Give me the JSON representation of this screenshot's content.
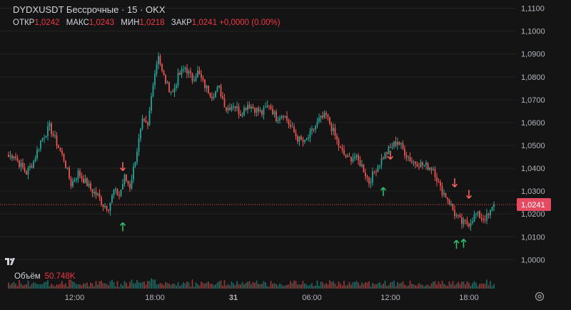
{
  "header": {
    "symbol": "DYDXUSDT",
    "contract": "Бессрочные",
    "interval": "15",
    "exchange": "OKX",
    "title_sep": "·",
    "open_label": "ОТКР",
    "open_value": "1,0242",
    "high_label": "МАКС",
    "high_value": "1,0243",
    "low_label": "МИН",
    "low_value": "1,0218",
    "close_label": "ЗАКР",
    "close_value": "1,0241",
    "change": "+0,0000 (0.00%)"
  },
  "volume": {
    "label": "Объём",
    "value": "50.748K"
  },
  "colors": {
    "up": "#26a69a",
    "down": "#ef5350",
    "background": "#141414",
    "grid": "#222222",
    "price_line": "#ef5350",
    "price_badge": "#e44b61",
    "buy_arrow": "#2ebd6b",
    "sell_arrow": "#f0645c"
  },
  "chart_data": {
    "type": "candlestick",
    "y_axis": {
      "ticks": [
        "1,1100",
        "1,1000",
        "1,0900",
        "1,0800",
        "1,0700",
        "1,0600",
        "1,0500",
        "1,0400",
        "1,0300",
        "1,0200",
        "1,0100",
        "1,0000"
      ],
      "ylim": [
        0.9998,
        1.1111
      ]
    },
    "x_axis": {
      "ticks": [
        "12:00",
        "18:00",
        "31",
        "06:00",
        "12:00",
        "18:00"
      ],
      "bold_tick": "31"
    },
    "current_price": {
      "value": 1.0241,
      "label": "1,0241"
    },
    "anchor_points": [
      [
        0,
        1.045
      ],
      [
        3,
        1.046
      ],
      [
        6,
        1.042
      ],
      [
        10,
        1.038
      ],
      [
        14,
        1.043
      ],
      [
        18,
        1.052
      ],
      [
        23,
        1.058
      ],
      [
        27,
        1.051
      ],
      [
        31,
        1.044
      ],
      [
        35,
        1.033
      ],
      [
        39,
        1.038
      ],
      [
        43,
        1.034
      ],
      [
        47,
        1.03
      ],
      [
        50,
        1.028
      ],
      [
        53,
        1.024
      ],
      [
        56,
        1.023
      ],
      [
        59,
        1.03
      ],
      [
        62,
        1.028
      ],
      [
        65,
        1.036
      ],
      [
        68,
        1.032
      ],
      [
        72,
        1.048
      ],
      [
        75,
        1.06
      ],
      [
        78,
        1.058
      ],
      [
        81,
        1.078
      ],
      [
        84,
        1.09
      ],
      [
        86,
        1.082
      ],
      [
        89,
        1.076
      ],
      [
        92,
        1.073
      ],
      [
        95,
        1.08
      ],
      [
        99,
        1.084
      ],
      [
        103,
        1.079
      ],
      [
        106,
        1.082
      ],
      [
        110,
        1.076
      ],
      [
        114,
        1.072
      ],
      [
        118,
        1.075
      ],
      [
        122,
        1.066
      ],
      [
        126,
        1.068
      ],
      [
        130,
        1.064
      ],
      [
        134,
        1.068
      ],
      [
        138,
        1.066
      ],
      [
        142,
        1.064
      ],
      [
        146,
        1.068
      ],
      [
        150,
        1.062
      ],
      [
        154,
        1.064
      ],
      [
        158,
        1.058
      ],
      [
        162,
        1.053
      ],
      [
        166,
        1.051
      ],
      [
        170,
        1.056
      ],
      [
        174,
        1.061
      ],
      [
        178,
        1.063
      ],
      [
        182,
        1.056
      ],
      [
        186,
        1.048
      ],
      [
        190,
        1.044
      ],
      [
        194,
        1.045
      ],
      [
        198,
        1.041
      ],
      [
        202,
        1.034
      ],
      [
        206,
        1.04
      ],
      [
        210,
        1.045
      ],
      [
        214,
        1.049
      ],
      [
        218,
        1.052
      ],
      [
        222,
        1.047
      ],
      [
        226,
        1.043
      ],
      [
        230,
        1.042
      ],
      [
        234,
        1.041
      ],
      [
        238,
        1.04
      ],
      [
        242,
        1.031
      ],
      [
        246,
        1.027
      ],
      [
        250,
        1.02
      ],
      [
        254,
        1.016
      ],
      [
        258,
        1.016
      ],
      [
        262,
        1.02
      ],
      [
        266,
        1.018
      ],
      [
        269,
        1.019
      ],
      [
        272,
        1.024
      ]
    ],
    "candle_count": 273,
    "time_ticks_index": [
      37,
      82,
      126,
      170,
      214,
      258
    ],
    "signals": [
      {
        "type": "sell",
        "index": 64,
        "price": 1.0411
      },
      {
        "type": "buy",
        "index": 64,
        "price": 1.014
      },
      {
        "type": "sell",
        "index": 214,
        "price": 1.0461
      },
      {
        "type": "buy",
        "index": 210,
        "price": 1.0294
      },
      {
        "type": "sell",
        "index": 250,
        "price": 1.034
      },
      {
        "type": "sell",
        "index": 258,
        "price": 1.029
      },
      {
        "type": "buy",
        "index": 251,
        "price": 1.0063
      },
      {
        "type": "buy",
        "index": 255,
        "price": 1.0068
      }
    ]
  }
}
